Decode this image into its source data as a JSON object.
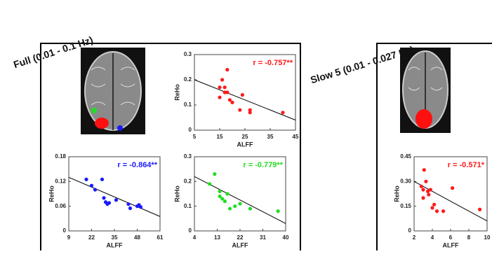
{
  "panel_titles": [
    "Full (0.01 - 0.1 Hz)",
    "Slow 5 (0.01 - 0.027 Hz)"
  ],
  "chart_data": [
    {
      "type": "scatter",
      "annotation": "r = -0.757**",
      "xlabel": "ALFF",
      "ylabel": "ReHo",
      "color": "#ff1a1a",
      "x": [
        15,
        16,
        17,
        17,
        15,
        18,
        19,
        20,
        23,
        24,
        27,
        27,
        40,
        18
      ],
      "values": [
        0.17,
        0.2,
        0.17,
        0.15,
        0.13,
        0.24,
        0.12,
        0.11,
        0.08,
        0.14,
        0.08,
        0.07,
        0.07,
        0.15
      ],
      "trend": {
        "x": [
          5,
          45
        ],
        "y": [
          0.2,
          0.04
        ]
      },
      "xlim": [
        5,
        45
      ],
      "xticks": [
        5,
        15,
        25,
        35,
        45
      ],
      "ylim": [
        0,
        0.3
      ],
      "yticks": [
        0,
        0.1,
        0.2,
        0.3
      ]
    },
    {
      "type": "scatter",
      "annotation": "r = -0.864**",
      "xlabel": "ALFF",
      "ylabel": "ReHo",
      "color": "#1a1aff",
      "x": [
        19,
        22,
        24,
        28,
        29,
        30,
        31,
        32,
        36,
        43,
        44,
        48,
        49,
        50
      ],
      "values": [
        0.125,
        0.11,
        0.1,
        0.125,
        0.08,
        0.07,
        0.065,
        0.068,
        0.075,
        0.065,
        0.055,
        0.06,
        0.063,
        0.058
      ],
      "trend": {
        "x": [
          9,
          61
        ],
        "y": [
          0.13,
          0.035
        ]
      },
      "xlim": [
        9,
        61
      ],
      "xticks": [
        9,
        22,
        35,
        48,
        61
      ],
      "ylim": [
        0,
        0.18
      ],
      "yticks": [
        0,
        0.06,
        0.12,
        0.18
      ]
    },
    {
      "type": "scatter",
      "annotation": "r = -0.779**",
      "xlabel": "ALFF",
      "ylabel": "ReHo",
      "color": "#22dd22",
      "x": [
        10,
        12,
        14,
        14,
        15,
        16,
        17,
        18,
        20,
        22,
        26,
        37
      ],
      "values": [
        0.19,
        0.23,
        0.16,
        0.14,
        0.13,
        0.12,
        0.15,
        0.09,
        0.1,
        0.11,
        0.09,
        0.08
      ],
      "trend": {
        "x": [
          4,
          40
        ],
        "y": [
          0.22,
          0.03
        ]
      },
      "xlim": [
        4,
        40
      ],
      "xticks": [
        4,
        13,
        22,
        31,
        40
      ],
      "ylim": [
        0,
        0.3
      ],
      "yticks": [
        0,
        0.1,
        0.2,
        0.3
      ]
    },
    {
      "type": "scatter",
      "annotation": "r = -0.571*",
      "xlabel": "ALFF",
      "ylabel": "ReHo",
      "color": "#ff1a1a",
      "x": [
        2.8,
        3,
        3,
        3.1,
        3.3,
        3.5,
        3.6,
        3.8,
        4,
        4.2,
        4.5,
        5.2,
        6.2,
        9.2
      ],
      "values": [
        0.27,
        0.25,
        0.2,
        0.37,
        0.3,
        0.24,
        0.22,
        0.25,
        0.14,
        0.16,
        0.12,
        0.12,
        0.26,
        0.13
      ],
      "trend": {
        "x": [
          2,
          10
        ],
        "y": [
          0.3,
          0.06
        ]
      },
      "xlim": [
        2,
        10
      ],
      "xticks": [
        2,
        4,
        6,
        8,
        10
      ],
      "ylim": [
        0,
        0.45
      ],
      "yticks": [
        0,
        0.15,
        {
          "value": 0.3,
          "label": "0.30"
        },
        0.45
      ]
    }
  ]
}
